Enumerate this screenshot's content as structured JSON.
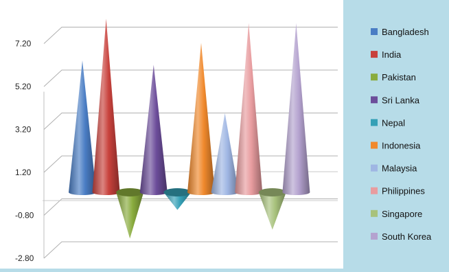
{
  "chart_data": {
    "type": "bar",
    "shape": "cone-3d",
    "title": "",
    "xlabel": "",
    "ylabel": "",
    "ylim": [
      -2.8,
      8.4
    ],
    "yticks": [
      "7.20",
      "5.20",
      "3.20",
      "1.20",
      "-0.80",
      "-2.80"
    ],
    "ytick_values": [
      7.2,
      5.2,
      3.2,
      1.2,
      -0.8,
      -2.8
    ],
    "grid": true,
    "legend_position": "right",
    "categories": [
      "Bangladesh",
      "India",
      "Pakistan",
      "Sri Lanka",
      "Nepal",
      "Indonesia",
      "Malaysia",
      "Philippines",
      "Singapore",
      "South Korea"
    ],
    "values": [
      6.0,
      7.9,
      -2.1,
      5.8,
      -0.8,
      6.8,
      3.6,
      7.7,
      -1.7,
      7.7
    ],
    "colors": [
      "#4a7dc4",
      "#c8413c",
      "#8aac3e",
      "#6c4d9a",
      "#35a0b6",
      "#f0892c",
      "#9fb6e3",
      "#e89c9f",
      "#a8c27c",
      "#b4a2cf"
    ]
  }
}
